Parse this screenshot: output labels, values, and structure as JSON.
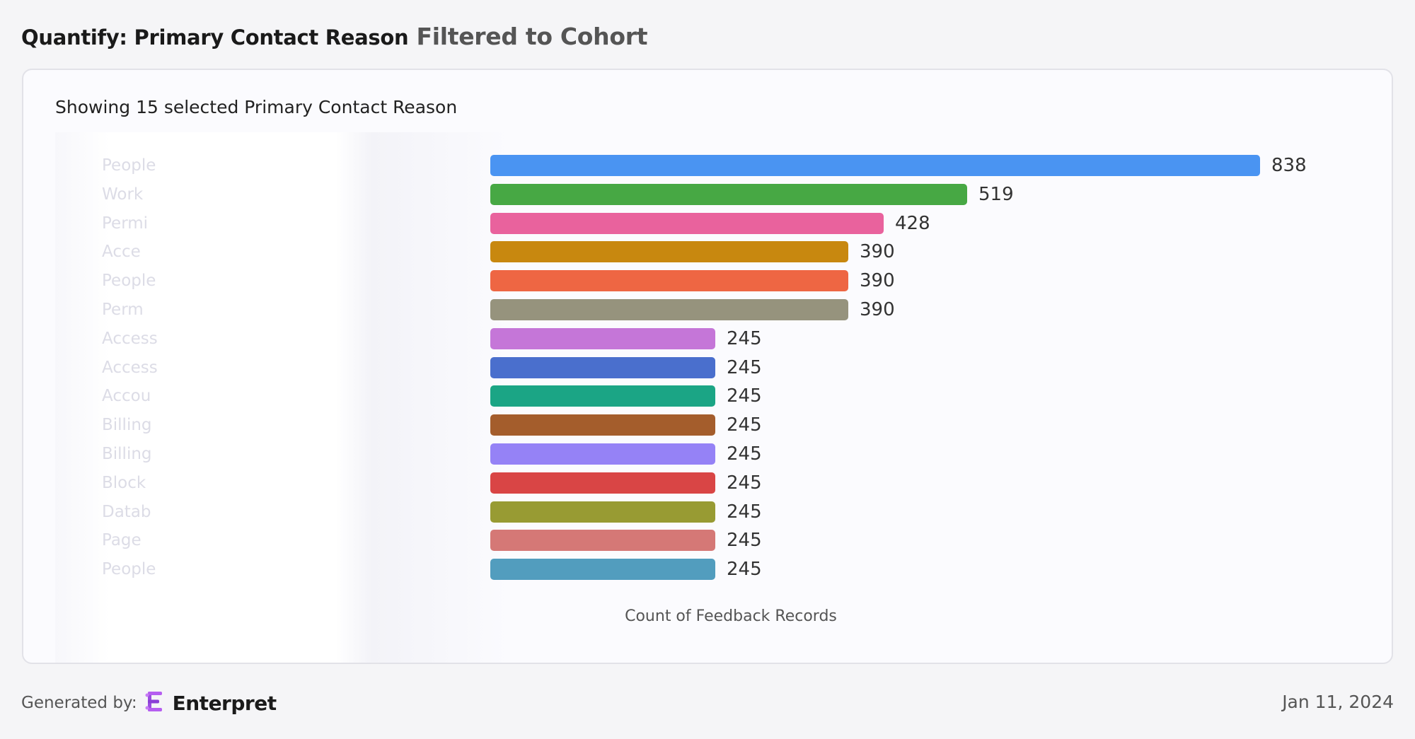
{
  "header": {
    "title": "Quantify: Primary Contact Reason",
    "subtitle": "Filtered to Cohort"
  },
  "card": {
    "showing_text": "Showing 15 selected Primary Contact Reason"
  },
  "footer": {
    "generated_label": "Generated by:",
    "brand": "Enterpret",
    "date": "Jan 11, 2024"
  },
  "chart_data": {
    "type": "bar",
    "orientation": "horizontal",
    "categories": [
      "People",
      "Work",
      "Permi",
      "Acce",
      "People",
      "Perm",
      "Access",
      "Access",
      "Accou",
      "Billing",
      "Billing",
      "Block",
      "Datab",
      "Page",
      "People"
    ],
    "values": [
      838,
      519,
      428,
      390,
      390,
      390,
      245,
      245,
      245,
      245,
      245,
      245,
      245,
      245,
      245
    ],
    "colors": [
      "#4a94f2",
      "#47a844",
      "#e9629d",
      "#c8880f",
      "#ee6643",
      "#96937d",
      "#c576d8",
      "#4a6fcd",
      "#1ba585",
      "#a45d2c",
      "#9582f6",
      "#d94545",
      "#989b33",
      "#d57876",
      "#529dbe"
    ],
    "title": "Showing 15 selected Primary Contact Reason",
    "xlabel": "Count of Feedback Records",
    "ylabel": "",
    "xlim": [
      0,
      838
    ],
    "grid": false,
    "legend": "none"
  }
}
